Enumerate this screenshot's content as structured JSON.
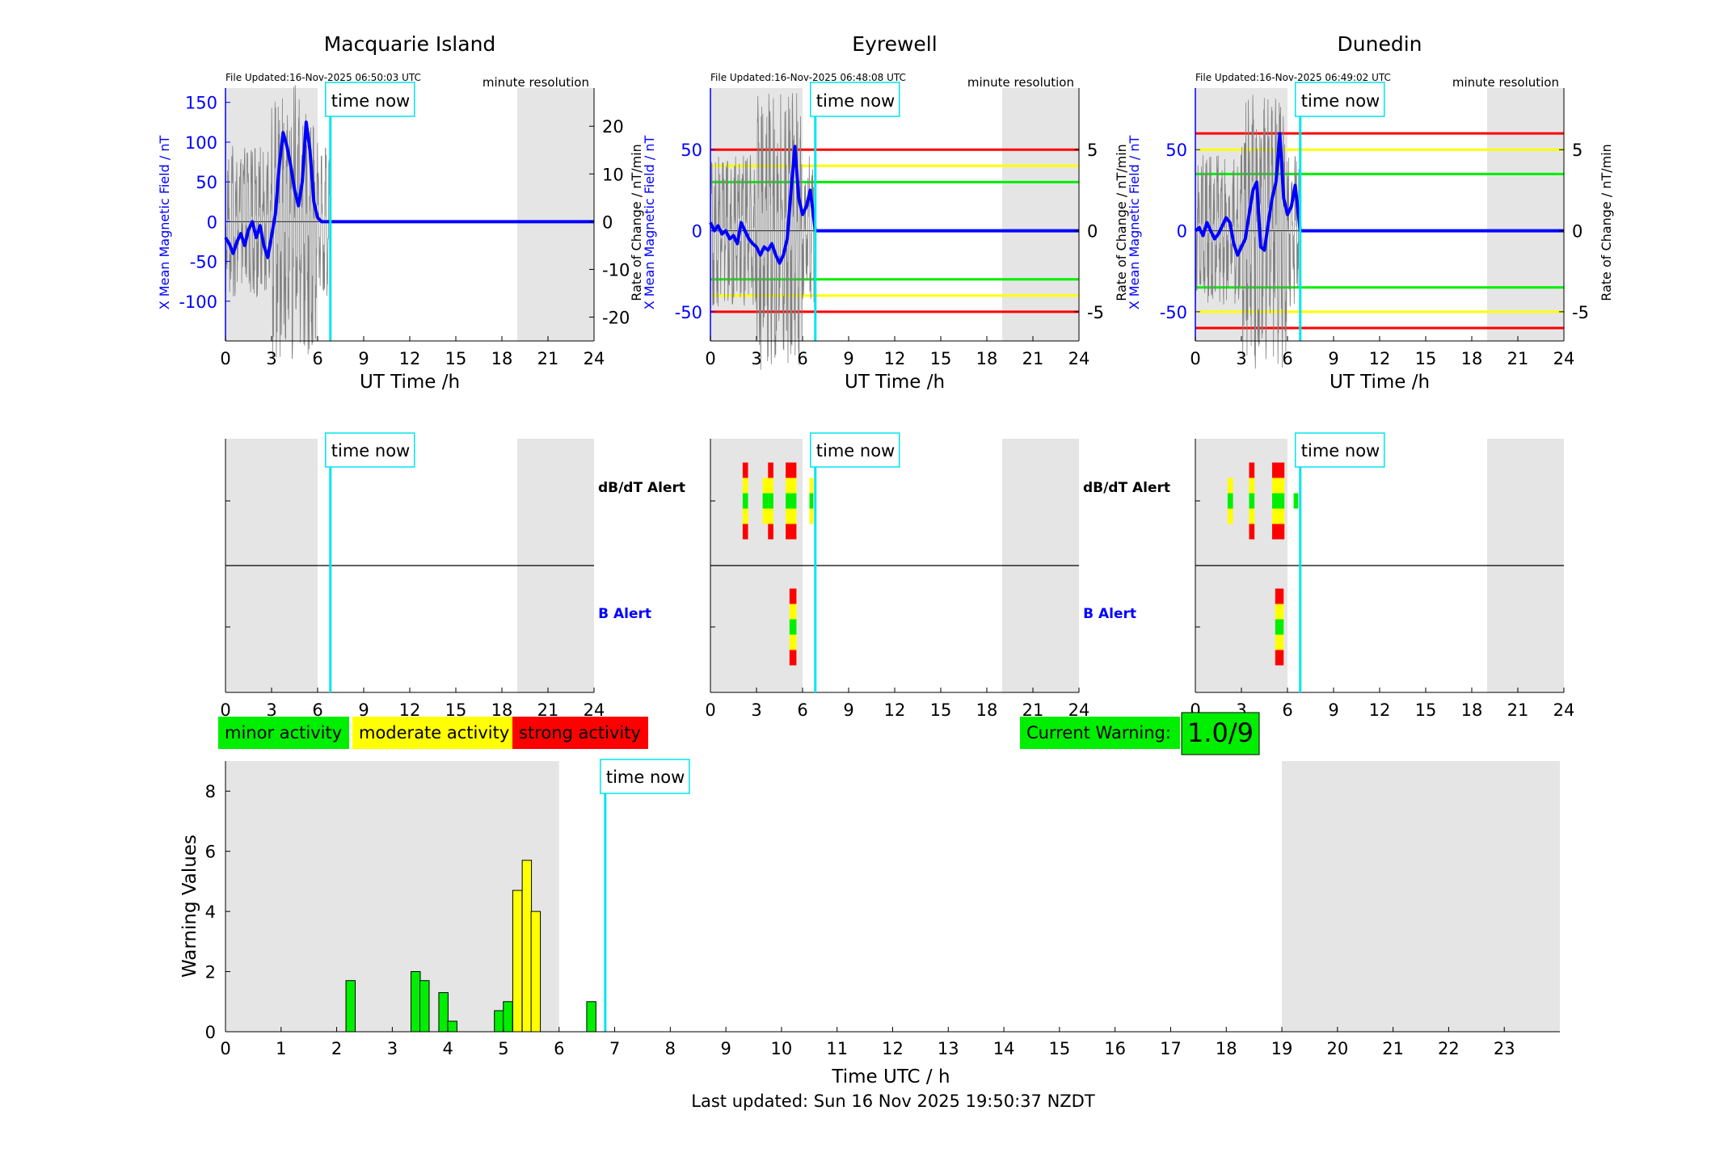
{
  "page": {
    "last_updated": "Last updated: Sun 16 Nov 2025 19:50:37 NZDT"
  },
  "colors": {
    "x_field": "#0000ff",
    "rate": "#808080",
    "time_now": "#00e5ee",
    "shade": "#e5e5e5",
    "minor": "#00ee00",
    "moderate": "#ffff00",
    "strong": "#ff0000"
  },
  "common": {
    "time_now_label": "time now",
    "time_now_hour": 6.83,
    "night_shading_hours": [
      [
        0,
        6
      ],
      [
        19,
        24
      ]
    ],
    "file_resolution": "minute resolution",
    "x_axis_label": "UT Time /h",
    "x_ticks": [
      0,
      3,
      6,
      9,
      12,
      15,
      18,
      21,
      24
    ],
    "left_ylabel": "X Mean Magnetic Field / nT",
    "right_ylabel": "Rate of Change / nT/min",
    "dbdt_alert_label": "dB/dT Alert",
    "b_alert_label": "B Alert"
  },
  "legend": {
    "minor": "minor activity",
    "moderate": "moderate activity",
    "strong": "strong activity"
  },
  "warning": {
    "label": "Current Warning:",
    "value": "1.0/9"
  },
  "chart_data": [
    {
      "type": "line",
      "station": "Macquarie Island",
      "file_updated": "File Updated:16-Nov-2025 06:50:03 UTC",
      "xlim": [
        0,
        24
      ],
      "ylim_left": [
        -150,
        168
      ],
      "yticks_left": [
        -100,
        -50,
        0,
        50,
        100,
        150
      ],
      "ylim_right": [
        -25,
        28
      ],
      "yticks_right": [
        -20,
        -10,
        0,
        10,
        20
      ],
      "threshold_lines": [],
      "series": [
        {
          "axis": "left",
          "x": [
            0,
            0.25,
            0.5,
            0.75,
            1,
            1.25,
            1.5,
            1.75,
            2,
            2.25,
            2.5,
            2.75,
            3,
            3.25,
            3.5,
            3.75,
            4,
            4.25,
            4.5,
            4.75,
            5,
            5.25,
            5.5,
            5.75,
            6,
            6.25,
            6.5,
            6.83,
            10,
            15,
            20,
            24
          ],
          "y": [
            -20,
            -28,
            -40,
            -25,
            -15,
            -30,
            -10,
            0,
            -20,
            -5,
            -30,
            -45,
            -18,
            10,
            70,
            112,
            95,
            70,
            40,
            20,
            50,
            125,
            90,
            25,
            5,
            0,
            0,
            0,
            0,
            0,
            0,
            0
          ]
        }
      ],
      "dbdt_alerts": [],
      "b_alerts": []
    },
    {
      "type": "line",
      "station": "Eyrewell",
      "file_updated": "File Updated:16-Nov-2025 06:48:08 UTC",
      "xlim": [
        0,
        24
      ],
      "ylim_left": [
        -68,
        88
      ],
      "yticks_left": [
        -50,
        0,
        50
      ],
      "ylim_right": [
        -6.8,
        8.8
      ],
      "yticks_right": [
        -5,
        0,
        5
      ],
      "threshold_lines": [
        {
          "value": 5,
          "color": "#ff0000"
        },
        {
          "value": 4,
          "color": "#ffff00"
        },
        {
          "value": 3,
          "color": "#00ee00"
        },
        {
          "value": -3,
          "color": "#00ee00"
        },
        {
          "value": -4,
          "color": "#ffff00"
        },
        {
          "value": -5,
          "color": "#ff0000"
        }
      ],
      "series": [
        {
          "axis": "left",
          "x": [
            0,
            0.25,
            0.5,
            0.75,
            1,
            1.25,
            1.5,
            1.75,
            2,
            2.25,
            2.5,
            2.75,
            3,
            3.25,
            3.5,
            3.75,
            4,
            4.25,
            4.5,
            4.75,
            5,
            5.25,
            5.5,
            5.75,
            6,
            6.25,
            6.5,
            6.83,
            10,
            15,
            20,
            24
          ],
          "y": [
            5,
            0,
            3,
            -2,
            0,
            -5,
            -3,
            -8,
            5,
            0,
            -5,
            -8,
            -10,
            -15,
            -10,
            -12,
            -8,
            -15,
            -20,
            -15,
            -5,
            25,
            52,
            20,
            10,
            15,
            25,
            0,
            0,
            0,
            0,
            0
          ]
        }
      ],
      "dbdt_alerts": [
        {
          "start": 2.1,
          "end": 2.45,
          "level": "strong"
        },
        {
          "start": 3.4,
          "end": 3.75,
          "level": "moderate"
        },
        {
          "start": 3.75,
          "end": 4.1,
          "level": "strong"
        },
        {
          "start": 4.9,
          "end": 5.6,
          "level": "strong"
        },
        {
          "start": 6.45,
          "end": 6.7,
          "level": "moderate"
        }
      ],
      "b_alerts": [
        {
          "start": 5.15,
          "end": 5.6,
          "level": "strong"
        }
      ]
    },
    {
      "type": "line",
      "station": "Dunedin",
      "file_updated": "File Updated:16-Nov-2025 06:49:02 UTC",
      "xlim": [
        0,
        24
      ],
      "ylim_left": [
        -68,
        88
      ],
      "yticks_left": [
        -50,
        0,
        50
      ],
      "ylim_right": [
        -6.8,
        8.8
      ],
      "yticks_right": [
        -5,
        0,
        5
      ],
      "threshold_lines": [
        {
          "value": 6,
          "color": "#ff0000"
        },
        {
          "value": 5,
          "color": "#ffff00"
        },
        {
          "value": 3.5,
          "color": "#00ee00"
        },
        {
          "value": -3.5,
          "color": "#00ee00"
        },
        {
          "value": -5,
          "color": "#ffff00"
        },
        {
          "value": -6,
          "color": "#ff0000"
        }
      ],
      "series": [
        {
          "axis": "left",
          "x": [
            0,
            0.25,
            0.5,
            0.75,
            1,
            1.25,
            1.5,
            1.75,
            2,
            2.25,
            2.5,
            2.75,
            3,
            3.25,
            3.5,
            3.75,
            4,
            4.25,
            4.5,
            4.75,
            5,
            5.25,
            5.5,
            5.75,
            6,
            6.25,
            6.5,
            6.83,
            10,
            15,
            20,
            24
          ],
          "y": [
            0,
            2,
            -3,
            5,
            0,
            -5,
            -2,
            3,
            8,
            5,
            -8,
            -15,
            -10,
            -5,
            10,
            25,
            30,
            -10,
            -12,
            5,
            20,
            30,
            60,
            20,
            10,
            15,
            28,
            0,
            0,
            0,
            0,
            0
          ]
        }
      ],
      "dbdt_alerts": [
        {
          "start": 2.1,
          "end": 2.45,
          "level": "moderate"
        },
        {
          "start": 3.5,
          "end": 3.85,
          "level": "strong"
        },
        {
          "start": 5.0,
          "end": 5.8,
          "level": "strong"
        },
        {
          "start": 6.4,
          "end": 6.7,
          "level": "minor"
        }
      ],
      "b_alerts": [
        {
          "start": 5.2,
          "end": 5.75,
          "level": "strong"
        }
      ]
    },
    {
      "type": "bar",
      "name": "warning-values",
      "xlabel": "Time UTC / h",
      "ylabel": "Warning Values",
      "xlim": [
        0,
        24
      ],
      "ylim": [
        0,
        9
      ],
      "xticks": [
        0,
        1,
        2,
        3,
        4,
        5,
        6,
        7,
        8,
        9,
        10,
        11,
        12,
        13,
        14,
        15,
        16,
        17,
        18,
        19,
        20,
        21,
        22,
        23
      ],
      "yticks": [
        0,
        2,
        4,
        6,
        8
      ],
      "bar_width_hours": 0.1667,
      "bars": [
        {
          "x": 2.25,
          "value": 1.7,
          "level": "minor"
        },
        {
          "x": 3.42,
          "value": 2.0,
          "level": "minor"
        },
        {
          "x": 3.58,
          "value": 1.7,
          "level": "minor"
        },
        {
          "x": 3.92,
          "value": 1.3,
          "level": "minor"
        },
        {
          "x": 4.08,
          "value": 0.35,
          "level": "minor"
        },
        {
          "x": 4.92,
          "value": 0.7,
          "level": "minor"
        },
        {
          "x": 5.08,
          "value": 1.0,
          "level": "minor"
        },
        {
          "x": 5.25,
          "value": 4.7,
          "level": "moderate"
        },
        {
          "x": 5.42,
          "value": 5.7,
          "level": "moderate"
        },
        {
          "x": 5.58,
          "value": 4.0,
          "level": "moderate"
        },
        {
          "x": 6.58,
          "value": 1.0,
          "level": "minor"
        }
      ]
    }
  ]
}
